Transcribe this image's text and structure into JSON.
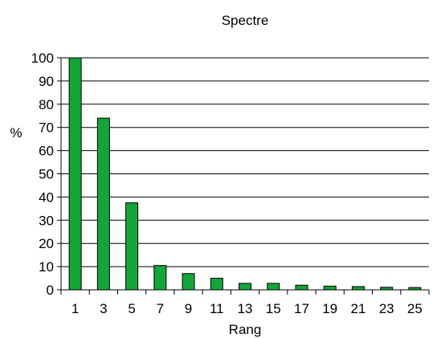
{
  "chart_data": {
    "type": "bar",
    "title": "Spectre",
    "xlabel": "Rang",
    "ylabel": "%",
    "ylim": [
      0,
      100
    ],
    "yticks": [
      0,
      10,
      20,
      30,
      40,
      50,
      60,
      70,
      80,
      90,
      100
    ],
    "categories": [
      "1",
      "3",
      "5",
      "7",
      "9",
      "11",
      "13",
      "15",
      "17",
      "19",
      "21",
      "23",
      "25"
    ],
    "values": [
      100,
      74,
      37.5,
      10.5,
      7,
      5,
      2.8,
      2.8,
      2,
      1.6,
      1.4,
      1.1,
      1
    ],
    "grid": true,
    "legend": "none",
    "colors": {
      "bar": "#13A538",
      "bar_stroke": "#000000",
      "grid": "#000000",
      "axis": "#000000"
    }
  }
}
